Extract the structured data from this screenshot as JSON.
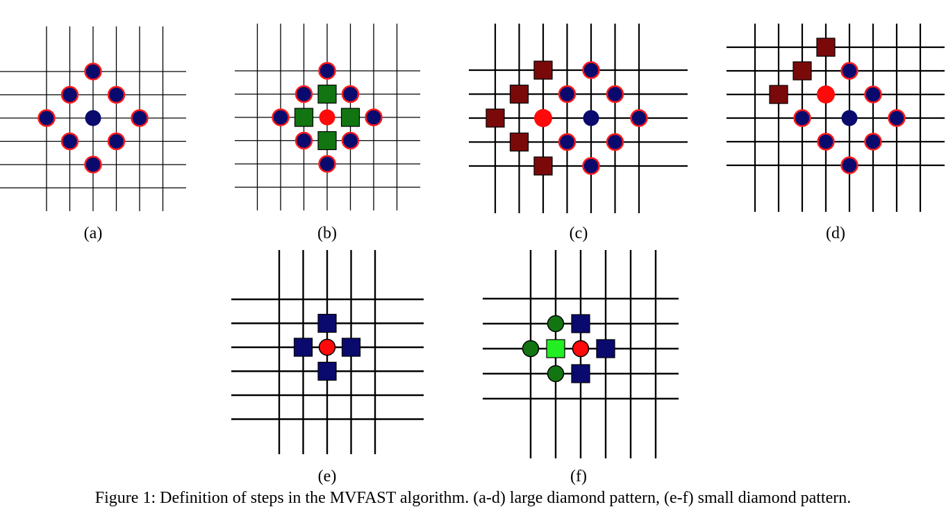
{
  "figure": {
    "caption": "Figure 1: Definition of steps in the MVFAST algorithm. (a-d) large diamond pattern, (e-f) small diamond pattern.",
    "colors": {
      "grid": "#000000",
      "navy": "#0a0a6e",
      "red": "#ff0a0a",
      "dark_green": "#127512",
      "bright_green": "#22ee22",
      "maroon": "#7a0a0a",
      "outline": "#ff1a1a"
    },
    "panels": [
      {
        "id": "a",
        "label": "(a)",
        "markers": [
          {
            "shape": "circle",
            "fill": "navy",
            "ring": true,
            "col": 0,
            "row": -2
          },
          {
            "shape": "circle",
            "fill": "navy",
            "ring": true,
            "col": -1,
            "row": -1
          },
          {
            "shape": "circle",
            "fill": "navy",
            "ring": true,
            "col": 1,
            "row": -1
          },
          {
            "shape": "circle",
            "fill": "navy",
            "ring": true,
            "col": -2,
            "row": 0
          },
          {
            "shape": "circle",
            "fill": "navy",
            "ring": false,
            "col": 0,
            "row": 0
          },
          {
            "shape": "circle",
            "fill": "navy",
            "ring": true,
            "col": 2,
            "row": 0
          },
          {
            "shape": "circle",
            "fill": "navy",
            "ring": true,
            "col": -1,
            "row": 1
          },
          {
            "shape": "circle",
            "fill": "navy",
            "ring": true,
            "col": 1,
            "row": 1
          },
          {
            "shape": "circle",
            "fill": "navy",
            "ring": true,
            "col": 0,
            "row": 2
          }
        ]
      },
      {
        "id": "b",
        "label": "(b)",
        "markers": [
          {
            "shape": "circle",
            "fill": "navy",
            "ring": true,
            "col": 0,
            "row": -2
          },
          {
            "shape": "circle",
            "fill": "navy",
            "ring": true,
            "col": -1,
            "row": -1
          },
          {
            "shape": "circle",
            "fill": "navy",
            "ring": true,
            "col": 1,
            "row": -1
          },
          {
            "shape": "circle",
            "fill": "navy",
            "ring": true,
            "col": -2,
            "row": 0
          },
          {
            "shape": "circle",
            "fill": "navy",
            "ring": true,
            "col": 2,
            "row": 0
          },
          {
            "shape": "circle",
            "fill": "navy",
            "ring": true,
            "col": -1,
            "row": 1
          },
          {
            "shape": "circle",
            "fill": "navy",
            "ring": true,
            "col": 1,
            "row": 1
          },
          {
            "shape": "circle",
            "fill": "navy",
            "ring": true,
            "col": 0,
            "row": 2
          },
          {
            "shape": "square",
            "fill": "dark_green",
            "col": 0,
            "row": -1
          },
          {
            "shape": "square",
            "fill": "dark_green",
            "col": -1,
            "row": 0
          },
          {
            "shape": "square",
            "fill": "dark_green",
            "col": 1,
            "row": 0
          },
          {
            "shape": "square",
            "fill": "dark_green",
            "col": 0,
            "row": 1
          },
          {
            "shape": "circle",
            "fill": "red",
            "ring": false,
            "col": 0,
            "row": 0
          }
        ]
      },
      {
        "id": "c",
        "label": "(c)",
        "markers": [
          {
            "shape": "square",
            "fill": "maroon",
            "col": -2,
            "row": -2
          },
          {
            "shape": "square",
            "fill": "maroon",
            "col": -3,
            "row": -1
          },
          {
            "shape": "square",
            "fill": "maroon",
            "col": -4,
            "row": 0
          },
          {
            "shape": "square",
            "fill": "maroon",
            "col": -3,
            "row": 1
          },
          {
            "shape": "square",
            "fill": "maroon",
            "col": -2,
            "row": 2
          },
          {
            "shape": "circle",
            "fill": "navy",
            "ring": true,
            "col": 0,
            "row": -2
          },
          {
            "shape": "circle",
            "fill": "navy",
            "ring": true,
            "col": -1,
            "row": -1
          },
          {
            "shape": "circle",
            "fill": "navy",
            "ring": true,
            "col": 1,
            "row": -1
          },
          {
            "shape": "circle",
            "fill": "navy",
            "ring": true,
            "col": 2,
            "row": 0
          },
          {
            "shape": "circle",
            "fill": "navy",
            "ring": true,
            "col": -1,
            "row": 1
          },
          {
            "shape": "circle",
            "fill": "navy",
            "ring": true,
            "col": 1,
            "row": 1
          },
          {
            "shape": "circle",
            "fill": "navy",
            "ring": true,
            "col": 0,
            "row": 2
          },
          {
            "shape": "circle",
            "fill": "navy",
            "ring": false,
            "col": 0,
            "row": 0
          },
          {
            "shape": "circle",
            "fill": "red",
            "ring": false,
            "big": true,
            "col": -2,
            "row": 0
          }
        ]
      },
      {
        "id": "d",
        "label": "(d)",
        "markers": [
          {
            "shape": "square",
            "fill": "maroon",
            "col": -1,
            "row": -3
          },
          {
            "shape": "square",
            "fill": "maroon",
            "col": -2,
            "row": -2
          },
          {
            "shape": "square",
            "fill": "maroon",
            "col": -3,
            "row": -1
          },
          {
            "shape": "circle",
            "fill": "navy",
            "ring": true,
            "col": 0,
            "row": -2
          },
          {
            "shape": "circle",
            "fill": "navy",
            "ring": true,
            "col": 1,
            "row": -1
          },
          {
            "shape": "circle",
            "fill": "navy",
            "ring": true,
            "col": -2,
            "row": 0
          },
          {
            "shape": "circle",
            "fill": "navy",
            "ring": true,
            "col": 2,
            "row": 0
          },
          {
            "shape": "circle",
            "fill": "navy",
            "ring": true,
            "col": -1,
            "row": 1
          },
          {
            "shape": "circle",
            "fill": "navy",
            "ring": true,
            "col": 1,
            "row": 1
          },
          {
            "shape": "circle",
            "fill": "navy",
            "ring": true,
            "col": 0,
            "row": 2
          },
          {
            "shape": "circle",
            "fill": "navy",
            "ring": false,
            "col": 0,
            "row": 0
          },
          {
            "shape": "circle",
            "fill": "red",
            "ring": false,
            "big": true,
            "col": -1,
            "row": -1
          }
        ]
      },
      {
        "id": "e",
        "label": "(e)",
        "markers": [
          {
            "shape": "square",
            "fill": "navy",
            "col": 0,
            "row": -1
          },
          {
            "shape": "square",
            "fill": "navy",
            "col": -1,
            "row": 0
          },
          {
            "shape": "square",
            "fill": "navy",
            "col": 1,
            "row": 0
          },
          {
            "shape": "square",
            "fill": "navy",
            "col": 0,
            "row": 1
          },
          {
            "shape": "circle",
            "fill": "red",
            "ring": false,
            "outlined": true,
            "col": 0,
            "row": 0
          }
        ]
      },
      {
        "id": "f",
        "label": "(f)",
        "markers": [
          {
            "shape": "circle",
            "fill": "dark_green",
            "ring": false,
            "outlined": true,
            "col": -1,
            "row": -1
          },
          {
            "shape": "circle",
            "fill": "dark_green",
            "ring": false,
            "outlined": true,
            "col": -2,
            "row": 0
          },
          {
            "shape": "circle",
            "fill": "dark_green",
            "ring": false,
            "outlined": true,
            "col": -1,
            "row": 1
          },
          {
            "shape": "square",
            "fill": "bright_green",
            "col": -1,
            "row": 0
          },
          {
            "shape": "square",
            "fill": "navy",
            "col": 0,
            "row": -1
          },
          {
            "shape": "square",
            "fill": "navy",
            "col": 1,
            "row": 0
          },
          {
            "shape": "square",
            "fill": "navy",
            "col": 0,
            "row": 1
          },
          {
            "shape": "circle",
            "fill": "red",
            "ring": false,
            "outlined": true,
            "col": 0,
            "row": 0
          }
        ]
      }
    ]
  }
}
